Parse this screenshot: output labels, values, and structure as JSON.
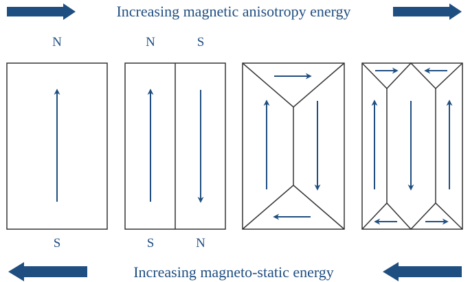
{
  "top_caption": "Increasing magnetic anisotropy energy",
  "bottom_caption": "Increasing magneto-static energy",
  "panels": [
    {
      "top_poles": [
        "N"
      ],
      "bottom_poles": [
        "S"
      ]
    },
    {
      "top_poles": [
        "N",
        "S"
      ],
      "bottom_poles": [
        "S",
        "N"
      ]
    },
    {
      "top_poles": [],
      "bottom_poles": []
    },
    {
      "top_poles": [],
      "bottom_poles": []
    }
  ],
  "colors": {
    "accent": "#1f4e80",
    "line": "#333333",
    "background": "#ffffff"
  },
  "icons": [
    "right-arrow-icon",
    "left-arrow-icon",
    "domain-magnetization-arrow-icon"
  ]
}
